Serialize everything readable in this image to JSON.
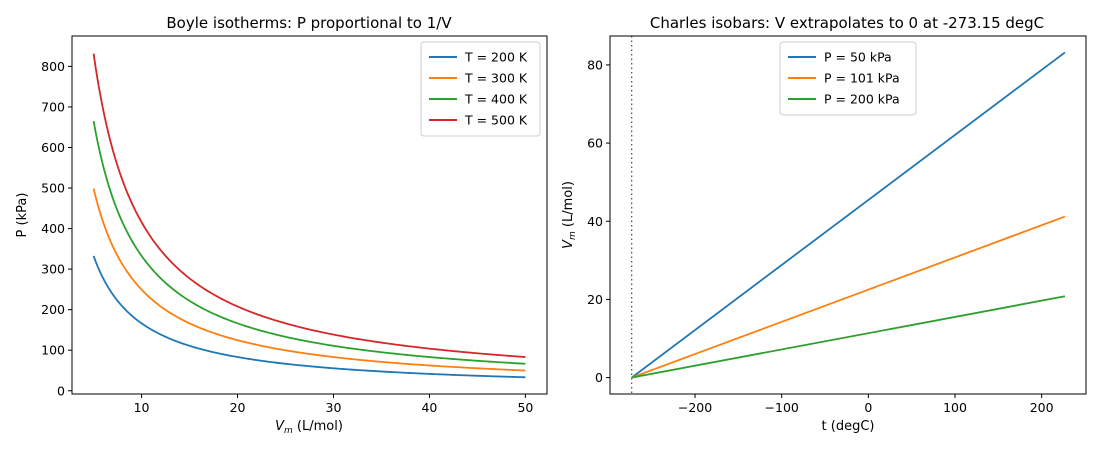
{
  "chart_data": [
    {
      "type": "line",
      "title": "Boyle isotherms: P proportional to 1/V",
      "xlabel_main": "V",
      "xlabel_sub": "m",
      "xlabel_rest": " (L/mol)",
      "ylabel": "P (kPa)",
      "xlim": [
        2.75,
        52.25
      ],
      "ylim": [
        -8,
        875
      ],
      "xticks": [
        10,
        20,
        30,
        40,
        50
      ],
      "yticks": [
        0,
        100,
        200,
        300,
        400,
        500,
        600,
        700,
        800
      ],
      "legend_position": "top-right",
      "x_range": [
        5,
        50
      ],
      "series": [
        {
          "name": "T = 200 K",
          "color": "#1f77b4",
          "constant": 1663,
          "form": "P = c / V"
        },
        {
          "name": "T = 300 K",
          "color": "#ff7f0e",
          "constant": 2494,
          "form": "P = c / V"
        },
        {
          "name": "T = 400 K",
          "color": "#2ca02c",
          "constant": 3326,
          "form": "P = c / V"
        },
        {
          "name": "T = 500 K",
          "color": "#d62728",
          "constant": 4157,
          "form": "P = c / V"
        }
      ]
    },
    {
      "type": "line",
      "title": "Charles isobars: V extrapolates to 0 at -273.15 degC",
      "xlabel": "t (degC)",
      "ylabel_main": "V",
      "ylabel_sub": "m",
      "ylabel_rest": " (L/mol)",
      "xlim": [
        -298.15,
        251.15
      ],
      "ylim": [
        -4.2,
        87.4
      ],
      "xticks": [
        -200,
        -100,
        0,
        100,
        200
      ],
      "xtick_labels": [
        "−200",
        "−100",
        "0",
        "100",
        "200"
      ],
      "yticks": [
        0,
        20,
        40,
        60,
        80
      ],
      "legend_position": "top-center",
      "absolute_zero": -273.15,
      "series": [
        {
          "name": "P = 50 kPa",
          "color": "#1f77b4",
          "x": [
            -273.15,
            226.85
          ],
          "y": [
            0,
            83.2
          ]
        },
        {
          "name": "P = 101 kPa",
          "color": "#ff7f0e",
          "x": [
            -273.15,
            226.85
          ],
          "y": [
            0,
            41.2
          ]
        },
        {
          "name": "P = 200 kPa",
          "color": "#2ca02c",
          "x": [
            -273.15,
            226.85
          ],
          "y": [
            0,
            20.8
          ]
        }
      ]
    }
  ]
}
